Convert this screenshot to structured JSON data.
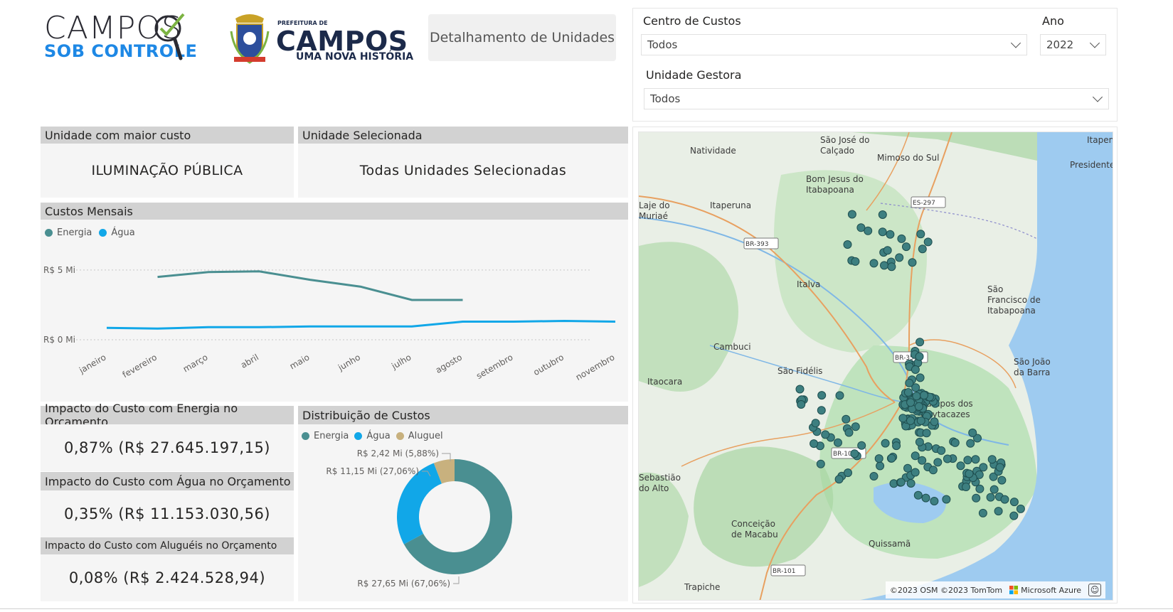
{
  "header": {
    "logo1": {
      "top": "CAMPOS",
      "bottom": "SOB CONTROLE"
    },
    "logo2": {
      "small": "PREFEITURA DE",
      "big": "CAMPOS",
      "sub": "UMA NOVA HISTÓRIA"
    },
    "detail_button": "Detalhamento de Unidades"
  },
  "filters": {
    "centro_label": "Centro de Custos",
    "centro_value": "Todos",
    "ano_label": "Ano",
    "ano_value": "2022",
    "unidade_label": "Unidade Gestora",
    "unidade_value": "Todos"
  },
  "cards": {
    "maior_custo": {
      "title": "Unidade com maior custo",
      "value": "ILUMINAÇÃO PÚBLICA"
    },
    "selecionada": {
      "title": "Unidade Selecionada",
      "value": "Todas Unidades Selecionadas"
    }
  },
  "monthly": {
    "title": "Custos Mensais",
    "legend": [
      "Energia",
      "Água"
    ],
    "colors": {
      "energia": "#4a8f91",
      "agua": "#11a7e8"
    },
    "y_ticks": [
      "R$ 5 Mi",
      "R$ 0 Mi"
    ]
  },
  "chart_data": [
    {
      "type": "line",
      "title": "Custos Mensais",
      "x": [
        "janeiro",
        "fevereiro",
        "março",
        "abril",
        "maio",
        "junho",
        "julho",
        "agosto",
        "setembro",
        "outubro",
        "novembro"
      ],
      "series": [
        {
          "name": "Energia",
          "values": [
            null,
            4.5,
            4.85,
            4.9,
            4.3,
            3.8,
            2.85,
            2.85,
            null,
            null,
            null
          ]
        },
        {
          "name": "Água",
          "values": [
            0.85,
            0.8,
            0.9,
            0.9,
            0.95,
            0.95,
            0.95,
            1.3,
            1.3,
            1.35,
            1.3
          ]
        }
      ],
      "ylim": [
        0,
        5.5
      ],
      "y_unit": "R$ Mi"
    },
    {
      "type": "pie",
      "title": "Distribuição de Custos",
      "labels": [
        "Energia",
        "Água",
        "Aluguel"
      ],
      "values": [
        27.65,
        11.15,
        2.42
      ],
      "percents": [
        67.06,
        27.06,
        5.88
      ],
      "data_labels": [
        "R$ 27,65 Mi (67,06%)",
        "R$ 11,15 Mi (27,06%)",
        "R$ 2,42 Mi (5,88%)"
      ],
      "colors": [
        "#4a8f91",
        "#11a7e8",
        "#c8b17e"
      ]
    }
  ],
  "impacts": {
    "energia": {
      "title": "Impacto do Custo com Energia no Orçamento",
      "value": "0,87% (R$ 27.645.197,15)"
    },
    "agua": {
      "title": "Impacto do Custo com Água no Orçamento",
      "value": "0,35% (R$ 11.153.030,56)"
    },
    "alugueis": {
      "title": "Impacto do Custo com Aluguéis no Orçamento",
      "value": "0,08% (R$ 2.424.528,94)"
    }
  },
  "distribution": {
    "title": "Distribuição de Custos",
    "legend": [
      "Energia",
      "Água",
      "Aluguel"
    ]
  },
  "map": {
    "places": [
      "Natividade",
      "São José do Calçado",
      "Mimoso do Sul",
      "Itapemirim",
      "Presidente Kennedy",
      "Bom Jesus do Itabapoana",
      "Laje do Muriaé",
      "Itaperuna",
      "BR-393",
      "ES-297",
      "Italva",
      "São Francisco de Itabapoana",
      "Cambuci",
      "São Fidélis",
      "Itaocara",
      "São João da Barra",
      "BR-356",
      "Campos dos Goytacazes",
      "BR-101",
      "Sebastião do Alto",
      "Conceição de Macabu",
      "Quissamã",
      "Trapiche",
      "BR-101"
    ],
    "attribution": "©2023 OSM ©2023 TomTom",
    "brand": "Microsoft Azure"
  }
}
